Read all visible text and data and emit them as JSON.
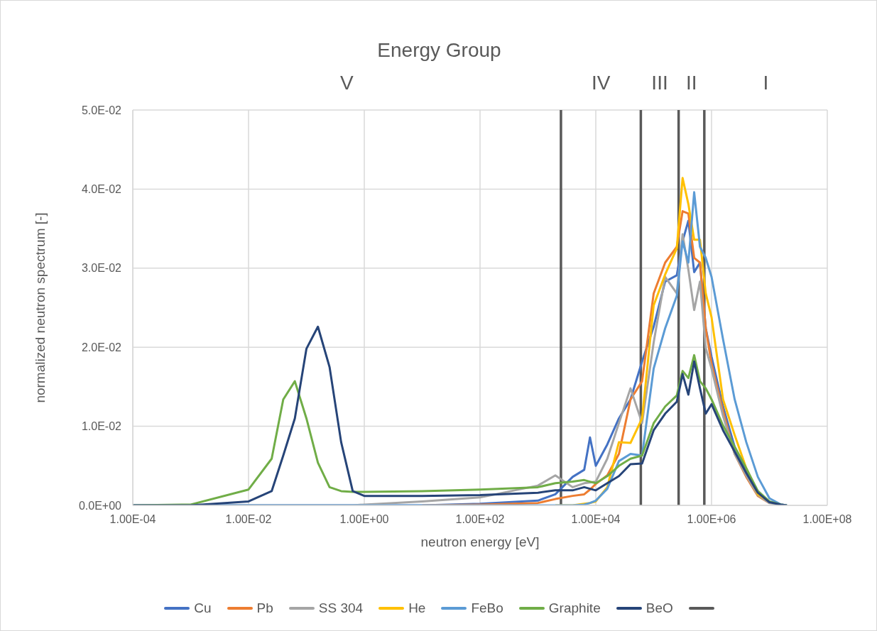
{
  "chart_data": {
    "type": "line",
    "title": "Energy Group",
    "xlabel": "neutron energy [eV]",
    "ylabel": "normalized neutron spectrum [-]",
    "log": "x",
    "grid": true,
    "legend": "bottom",
    "xlim": [
      0.0001,
      100000000
    ],
    "xticks": [
      {
        "value": 0.0001,
        "label": "1.00E-04"
      },
      {
        "value": 0.01,
        "label": "1.00E-02"
      },
      {
        "value": 1,
        "label": "1.00E+00"
      },
      {
        "value": 100,
        "label": "1.00E+02"
      },
      {
        "value": 10000,
        "label": "1.00E+04"
      },
      {
        "value": 1000000,
        "label": "1.00E+06"
      },
      {
        "value": 100000000,
        "label": "1.00E+08"
      }
    ],
    "ylim": [
      0,
      0.05
    ],
    "yticks": [
      {
        "value": 0,
        "label": "0.0E+00"
      },
      {
        "value": 0.01,
        "label": "1.0E-02"
      },
      {
        "value": 0.02,
        "label": "2.0E-02"
      },
      {
        "value": 0.03,
        "label": "3.0E-02"
      },
      {
        "value": 0.04,
        "label": "4.0E-02"
      },
      {
        "value": 0.05,
        "label": "5.0E-02"
      }
    ],
    "x": [
      0.0001,
      0.001,
      0.01,
      0.0251,
      0.0398,
      0.0631,
      0.1,
      0.158,
      0.251,
      0.398,
      0.631,
      1,
      10,
      100,
      1000,
      2000,
      3980,
      6310,
      7940,
      10000,
      15800,
      25100,
      39800,
      63100,
      100000,
      158000,
      251000,
      316000,
      398000,
      501000,
      631000,
      794000,
      1000000,
      1580000,
      2510000,
      3980000,
      6310000,
      10000000,
      15800000,
      20000000
    ],
    "series": [
      {
        "name": "Cu",
        "color": "#4472c4",
        "values": [
          0,
          0,
          0,
          0,
          0,
          0,
          0,
          0,
          0,
          0,
          0,
          0,
          0,
          0.0002,
          0.0006,
          0.0014,
          0.0036,
          0.0045,
          0.0086,
          0.005,
          0.0077,
          0.011,
          0.0134,
          0.0182,
          0.0226,
          0.0283,
          0.0291,
          0.0334,
          0.036,
          0.0295,
          0.0307,
          0.0224,
          0.0188,
          0.0125,
          0.0074,
          0.0045,
          0.0018,
          0.0004,
          0.0001,
          0
        ]
      },
      {
        "name": "Pb",
        "color": "#ed7d31",
        "values": [
          null,
          null,
          null,
          null,
          null,
          null,
          null,
          null,
          null,
          null,
          null,
          null,
          0,
          0.0001,
          0.0003,
          0.0008,
          0.0012,
          0.0014,
          0.002,
          0.0027,
          0.0038,
          0.0065,
          0.0134,
          0.0157,
          0.0268,
          0.0307,
          0.0327,
          0.0372,
          0.0369,
          0.0313,
          0.0307,
          0.0224,
          0.0179,
          0.0119,
          0.0065,
          0.0036,
          0.0012,
          0.0003,
          null,
          null
        ]
      },
      {
        "name": "SS 304",
        "color": "#a5a5a5",
        "values": [
          0,
          0,
          0,
          0,
          0,
          0,
          0,
          0,
          0,
          0,
          0,
          0.0001,
          0.0005,
          0.001,
          0.0025,
          0.0038,
          0.0023,
          0.0028,
          0.0029,
          0.003,
          0.0059,
          0.0104,
          0.0148,
          0.0104,
          0.0206,
          0.0289,
          0.0268,
          0.0343,
          0.0298,
          0.0247,
          0.0283,
          0.0199,
          0.0173,
          0.0113,
          0.0065,
          0.0038,
          0.0013,
          0.0003,
          0.0001,
          0
        ]
      },
      {
        "name": "He",
        "color": "#ffc000",
        "values": [
          null,
          null,
          null,
          null,
          null,
          null,
          null,
          null,
          null,
          null,
          null,
          null,
          null,
          null,
          null,
          0,
          0,
          0.0002,
          0.0003,
          0.0005,
          0.0023,
          0.008,
          0.0079,
          0.011,
          0.0253,
          0.0292,
          0.0325,
          0.0414,
          0.0381,
          0.0336,
          0.0336,
          0.0268,
          0.0238,
          0.0134,
          0.0089,
          0.0047,
          0.0014,
          0.0005,
          null,
          null
        ]
      },
      {
        "name": "FeBo",
        "color": "#5b9bd5",
        "values": [
          0,
          0,
          0,
          0,
          0,
          0,
          0,
          0,
          0,
          0,
          0,
          0,
          0,
          0,
          0,
          0,
          0,
          0.0001,
          0.0003,
          0.0006,
          0.0021,
          0.0056,
          0.0065,
          0.0063,
          0.0173,
          0.0224,
          0.0265,
          0.0334,
          0.0307,
          0.0396,
          0.0327,
          0.0313,
          0.0289,
          0.021,
          0.0134,
          0.008,
          0.0036,
          0.0009,
          0.0001,
          0
        ]
      },
      {
        "name": "Graphite",
        "color": "#70ad47",
        "values": [
          0,
          0.0001,
          0.002,
          0.0059,
          0.0134,
          0.0157,
          0.011,
          0.0054,
          0.0023,
          0.0018,
          0.0017,
          0.0017,
          0.0018,
          0.002,
          0.0023,
          0.0028,
          0.003,
          0.0032,
          0.003,
          0.0028,
          0.0037,
          0.005,
          0.0059,
          0.0063,
          0.0104,
          0.0125,
          0.0139,
          0.017,
          0.0161,
          0.019,
          0.0157,
          0.0148,
          0.0134,
          0.0101,
          0.0074,
          0.0047,
          0.0018,
          0.0005,
          0.0001,
          0
        ]
      },
      {
        "name": "BeO",
        "color": "#264478",
        "values": [
          0,
          0,
          0.0005,
          0.0018,
          0.0063,
          0.011,
          0.0198,
          0.0226,
          0.0175,
          0.008,
          0.0018,
          0.0012,
          0.0012,
          0.0013,
          0.0016,
          0.0019,
          0.0019,
          0.0023,
          0.0021,
          0.0019,
          0.0028,
          0.0037,
          0.0052,
          0.0053,
          0.0095,
          0.0116,
          0.0131,
          0.0166,
          0.014,
          0.0182,
          0.0148,
          0.0116,
          0.0128,
          0.0095,
          0.0068,
          0.0041,
          0.0016,
          0.0004,
          0.0001,
          0
        ]
      }
    ],
    "ref_lines": [
      {
        "axis": "x",
        "value": 2500,
        "color": "#595959"
      },
      {
        "axis": "x",
        "value": 60000,
        "color": "#595959"
      },
      {
        "axis": "x",
        "value": 270000,
        "color": "#595959"
      },
      {
        "axis": "x",
        "value": 750000,
        "color": "#595959"
      }
    ],
    "annotations": [
      "V",
      "IV",
      "III",
      "II",
      "I"
    ]
  }
}
